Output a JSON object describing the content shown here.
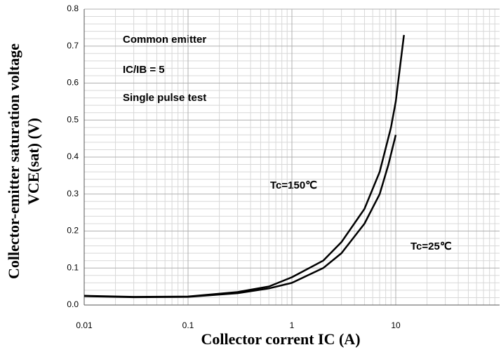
{
  "chart_data": {
    "type": "line",
    "x_label": "Collector corrent IC (A)",
    "y_label": [
      "Collector-emitter saturation voltage",
      "VCE(sat) (V)"
    ],
    "annotations": [
      "Common emitter",
      "IC/IB = 5",
      "Single pulse test"
    ],
    "xscale": "log",
    "xlim": [
      0.01,
      100
    ],
    "xticks": [
      0.01,
      0.1,
      1,
      10
    ],
    "ylim": [
      0,
      0.8
    ],
    "yticks": [
      {
        "value": 0,
        "label": "0.0"
      },
      0.1,
      0.2,
      0.3,
      0.4,
      0.5,
      0.6,
      0.7,
      0.8
    ],
    "grid": true,
    "minor_grid": true,
    "series": [
      {
        "name": "Tc=150℃",
        "color": "#000000",
        "x": [
          0.01,
          0.03,
          0.1,
          0.3,
          0.6,
          1,
          2,
          3,
          5,
          7,
          9,
          10,
          12
        ],
        "values": [
          0.025,
          0.022,
          0.023,
          0.035,
          0.05,
          0.075,
          0.12,
          0.17,
          0.26,
          0.36,
          0.48,
          0.55,
          0.73
        ]
      },
      {
        "name": "Tc=25℃",
        "color": "#000000",
        "x": [
          0.01,
          0.03,
          0.1,
          0.3,
          0.6,
          1,
          2,
          3,
          5,
          7,
          8.5,
          10
        ],
        "values": [
          0.024,
          0.021,
          0.022,
          0.032,
          0.045,
          0.06,
          0.1,
          0.14,
          0.22,
          0.3,
          0.38,
          0.46
        ]
      }
    ]
  }
}
